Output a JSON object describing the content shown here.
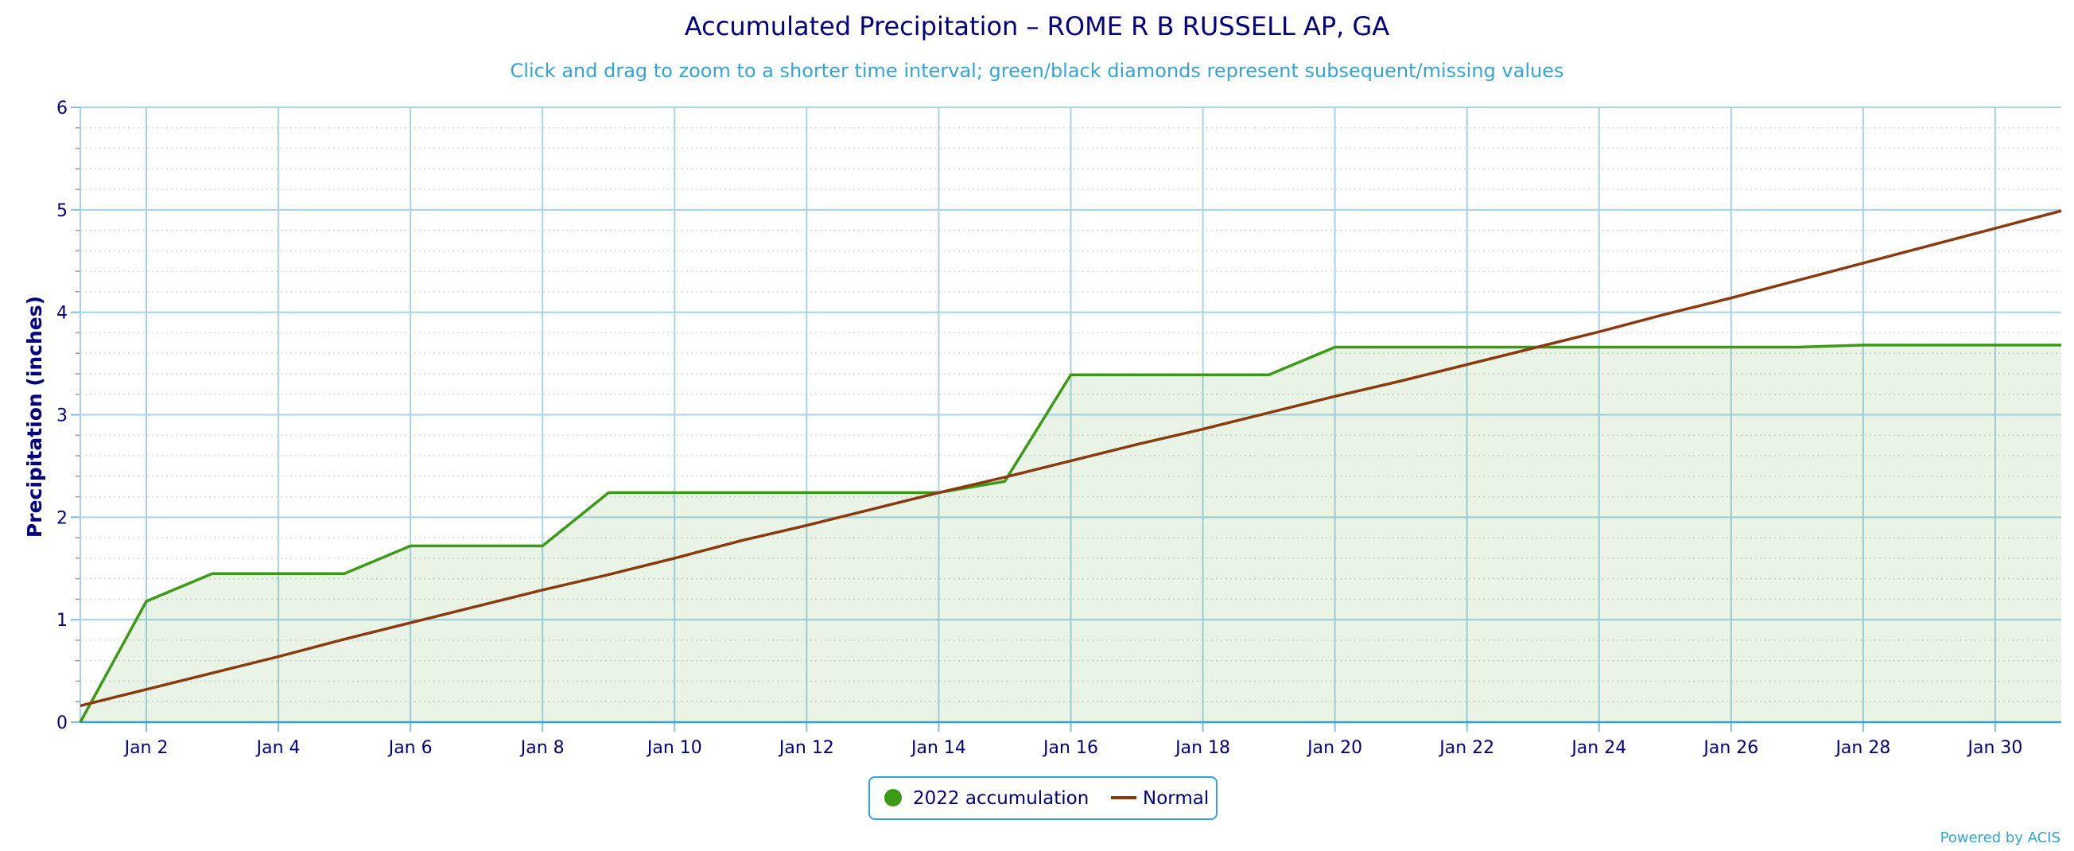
{
  "chart_data": {
    "type": "area",
    "title": "Accumulated Precipitation – ROME R B RUSSELL AP, GA",
    "subtitle": "Click and drag to zoom to a shorter time interval; green/black diamonds represent subsequent/missing values",
    "xlabel": "",
    "ylabel": "Precipitation (inches)",
    "x": [
      "Jan 1",
      "Jan 2",
      "Jan 3",
      "Jan 4",
      "Jan 5",
      "Jan 6",
      "Jan 7",
      "Jan 8",
      "Jan 9",
      "Jan 10",
      "Jan 11",
      "Jan 12",
      "Jan 13",
      "Jan 14",
      "Jan 15",
      "Jan 16",
      "Jan 17",
      "Jan 18",
      "Jan 19",
      "Jan 20",
      "Jan 21",
      "Jan 22",
      "Jan 23",
      "Jan 24",
      "Jan 25",
      "Jan 26",
      "Jan 27",
      "Jan 28",
      "Jan 29",
      "Jan 30",
      "Jan 31"
    ],
    "x_tick_labels": [
      "Jan 2",
      "Jan 4",
      "Jan 6",
      "Jan 8",
      "Jan 10",
      "Jan 12",
      "Jan 14",
      "Jan 16",
      "Jan 18",
      "Jan 20",
      "Jan 22",
      "Jan 24",
      "Jan 26",
      "Jan 28",
      "Jan 30"
    ],
    "y_tick_labels": [
      "0",
      "1",
      "2",
      "3",
      "4",
      "5",
      "6"
    ],
    "ylim": [
      0,
      6
    ],
    "grid": true,
    "legend_position": "bottom-center",
    "series": [
      {
        "name": "2022 accumulation",
        "type": "area",
        "color": "#3c9a17",
        "values": [
          0.0,
          1.18,
          1.45,
          1.45,
          1.45,
          1.72,
          1.72,
          1.72,
          2.24,
          2.24,
          2.24,
          2.24,
          2.24,
          2.24,
          2.35,
          3.39,
          3.39,
          3.39,
          3.39,
          3.66,
          3.66,
          3.66,
          3.66,
          3.66,
          3.66,
          3.66,
          3.66,
          3.68,
          3.68,
          3.68,
          3.68
        ]
      },
      {
        "name": "Normal",
        "type": "line",
        "color": "#8b3a0f",
        "values": [
          0.16,
          0.32,
          0.48,
          0.64,
          0.81,
          0.97,
          1.13,
          1.29,
          1.44,
          1.6,
          1.77,
          1.92,
          2.08,
          2.24,
          2.39,
          2.55,
          2.71,
          2.86,
          3.02,
          3.18,
          3.33,
          3.49,
          3.65,
          3.81,
          3.98,
          4.14,
          4.31,
          4.48,
          4.65,
          4.82,
          4.99
        ]
      }
    ]
  },
  "credit": "Powered by ACIS"
}
